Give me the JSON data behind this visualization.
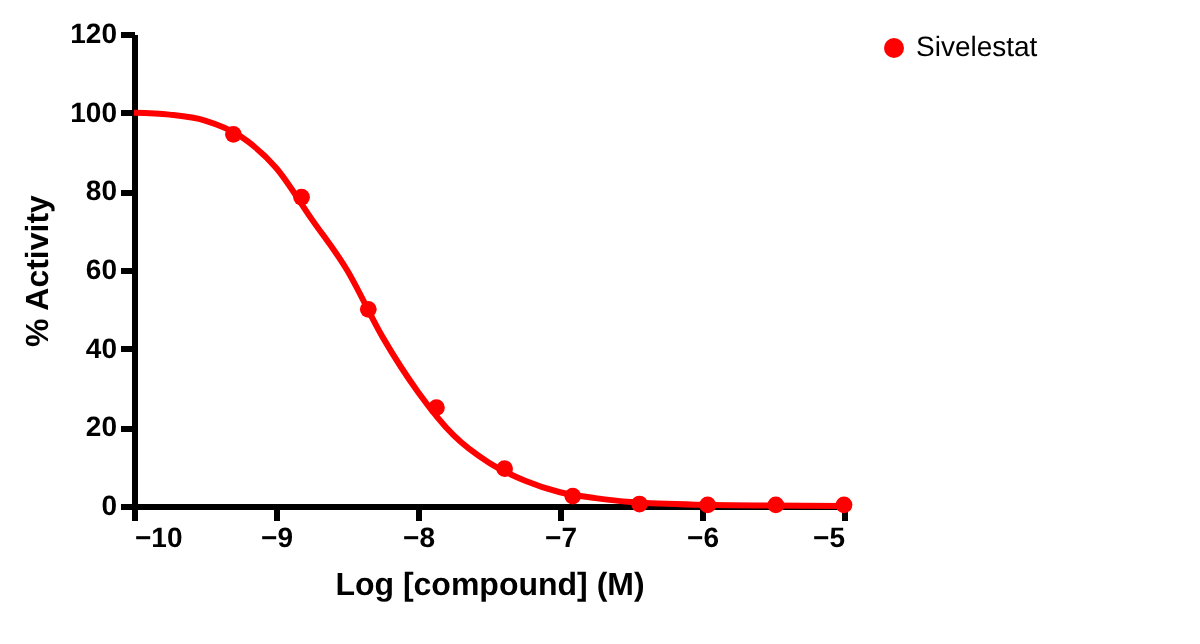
{
  "chart_data": {
    "type": "scatter",
    "xlabel": "Log [compound] (M)",
    "ylabel": "% Activity",
    "xlim": [
      -10,
      -5
    ],
    "xticks": [
      -10,
      -9,
      -8,
      -7,
      -6,
      -5
    ],
    "ylim": [
      0,
      120
    ],
    "yticks": [
      0,
      20,
      40,
      60,
      80,
      100,
      120
    ],
    "grid": false,
    "legend": "top right",
    "marker": "circle",
    "series": [
      {
        "name": "Sivelestat",
        "color": "#ff0000",
        "x": [
          -9.3,
          -8.82,
          -8.35,
          -7.87,
          -7.39,
          -6.91,
          -6.44,
          -5.96,
          -5.48,
          -5.0
        ],
        "values": [
          94.5,
          78.5,
          50,
          25,
          9.5,
          2.5,
          0.5,
          0.3,
          0.3,
          0.3
        ]
      },
      {
        "type": "line",
        "color": "#ff0000",
        "line_style": "solid",
        "marker": "none",
        "x": [
          -10,
          -9.75,
          -9.5,
          -9.25,
          -9,
          -8.75,
          -8.5,
          -8.25,
          -8,
          -7.75,
          -7.5,
          -7.25,
          -7,
          -6.75,
          -6.5,
          -6,
          -5.5,
          -5
        ],
        "values": [
          100,
          99.5,
          98,
          94,
          86,
          73,
          60,
          43,
          29,
          18,
          11,
          6.5,
          3.5,
          2,
          1,
          0.3,
          0.1,
          0
        ]
      }
    ]
  }
}
